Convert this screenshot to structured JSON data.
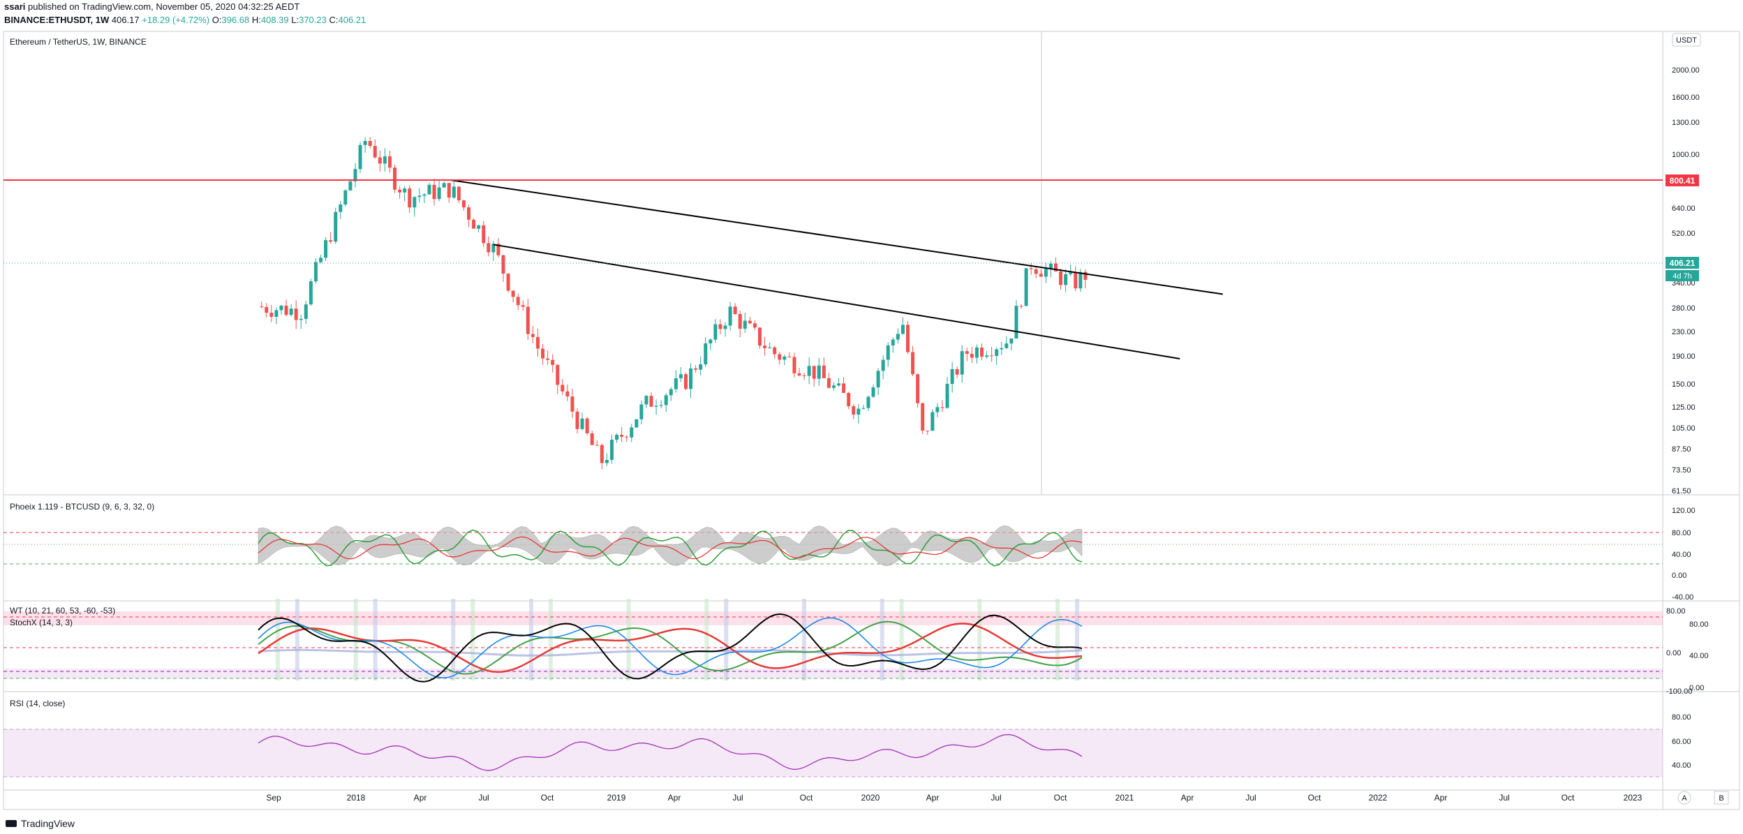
{
  "header": {
    "line1_author": "ssari",
    "line1_rest": "published on TradingView.com, November 05, 2020 04:32:25 AEDT",
    "symbol": "BINANCE:ETHUSDT, 1W",
    "last": "406.17",
    "change": "+18.29 (+4.72%)",
    "o_label": "O:",
    "o_value": "396.68",
    "h_label": "H:",
    "h_value": "408.39",
    "l_label": "L:",
    "l_value": "370.23",
    "c_value": "406.21"
  },
  "main_pane": {
    "legend": "Ethereum / TetherUS, 1W, BINANCE",
    "currency_badge": "USDT",
    "price_ticks": [
      "2000.00",
      "1600.00",
      "1300.00",
      "1000.00",
      "800.00",
      "640.00",
      "520.00",
      "420.00",
      "340.00",
      "280.00",
      "230.00",
      "190.00",
      "150.00",
      "125.00",
      "105.00",
      "87.50",
      "73.50",
      "61.50"
    ],
    "resistance_label": "800.41",
    "resistance_color": "#f23645",
    "last_price_label": "406.21",
    "countdown_label": "4d 7h",
    "accent_color": "#26a69a"
  },
  "phoeix_pane": {
    "legend": "Phoeix 1.119 - BTCUSD (9, 6, 3, 32, 0)",
    "ticks": [
      "120.00",
      "80.00",
      "40.00",
      "0.00",
      "-40.00"
    ]
  },
  "wt_pane": {
    "legend_wt": "WT (10, 21, 60, 53, -60, -53)",
    "legend_stoch": "StochX (14, 3, 3)",
    "ticks_left": [
      "80.00",
      "0.00",
      "-100.00"
    ],
    "ticks_right": [
      "80.00",
      "40.00",
      "0.00"
    ]
  },
  "rsi_pane": {
    "legend": "RSI (14, close)",
    "ticks": [
      "80.00",
      "60.00",
      "40.00"
    ]
  },
  "time_axis": {
    "labels": [
      "Sep",
      "2018",
      "Apr",
      "Jul",
      "Oct",
      "2019",
      "Apr",
      "Jul",
      "Oct",
      "2020",
      "Apr",
      "Jul",
      "Oct",
      "2021",
      "Apr",
      "Jul",
      "Oct",
      "2022",
      "Apr",
      "Jul",
      "Oct",
      "2023"
    ],
    "btn_auto": "A",
    "btn_b": "B"
  },
  "footer": {
    "brand": "TradingView"
  },
  "chart_data": {
    "type": "candlestick",
    "scale": "log",
    "interval": "1W",
    "x": [
      "Aug 2017",
      "Oct 2017",
      "Dec 2017",
      "Jan 2018",
      "Mar 2018",
      "May 2018",
      "Jul 2018",
      "Sep 2018",
      "Nov 2018",
      "Dec 2018",
      "Feb 2019",
      "Apr 2019",
      "Jun 2019",
      "Aug 2019",
      "Oct 2019",
      "Dec 2019",
      "Feb 2020",
      "Mar 2020",
      "May 2020",
      "Jul 2020",
      "Aug 2020",
      "Oct 2020",
      "Nov 2020"
    ],
    "close": [
      300,
      290,
      700,
      1100,
      700,
      750,
      470,
      220,
      120,
      90,
      140,
      170,
      290,
      210,
      180,
      135,
      270,
      110,
      210,
      230,
      420,
      360,
      406
    ],
    "ylim": [
      61.5,
      2400
    ],
    "trendlines": [
      {
        "from": [
          "May 2018",
          800
        ],
        "to": [
          "May 2021",
          330
        ]
      },
      {
        "from": [
          "Jul 2018",
          485
        ],
        "to": [
          "Mar 2021",
          200
        ]
      }
    ],
    "horizontal_levels": [
      800.41,
      406.21
    ]
  }
}
